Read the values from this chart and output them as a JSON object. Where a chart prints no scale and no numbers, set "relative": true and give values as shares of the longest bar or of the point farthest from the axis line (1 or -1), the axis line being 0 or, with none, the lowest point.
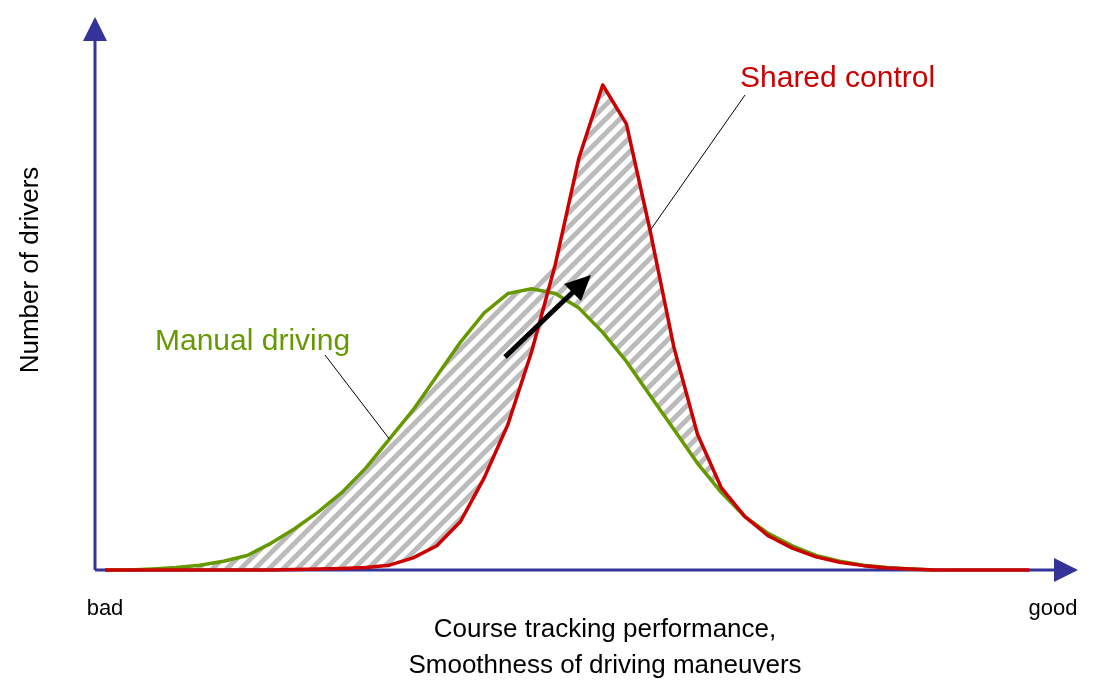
{
  "chart_data": {
    "type": "line",
    "relative": true,
    "xlabel": "Course tracking performance,\nSmoothness of driving maneuvers",
    "ylabel": "Number of drivers",
    "legend": false,
    "categories": [
      "bad",
      null,
      null,
      null,
      null,
      null,
      null,
      null,
      null,
      null,
      null,
      null,
      null,
      null,
      null,
      null,
      null,
      null,
      null,
      null,
      null,
      null,
      null,
      null,
      null,
      null,
      null,
      null,
      null,
      null,
      null,
      null,
      null,
      null,
      null,
      null,
      null,
      null,
      null,
      null,
      "good"
    ],
    "series": [
      {
        "name": "Manual driving",
        "color": "#669900",
        "values": [
          0,
          0,
          0.002,
          0.005,
          0.01,
          0.018,
          0.03,
          0.055,
          0.085,
          0.12,
          0.16,
          0.21,
          0.27,
          0.33,
          0.4,
          0.47,
          0.53,
          0.57,
          0.58,
          0.57,
          0.54,
          0.49,
          0.43,
          0.36,
          0.29,
          0.22,
          0.16,
          0.11,
          0.075,
          0.05,
          0.03,
          0.018,
          0.01,
          0.005,
          0.002,
          0,
          null,
          null,
          null,
          null,
          null
        ]
      },
      {
        "name": "Shared control",
        "color": "#cc0000",
        "values": [
          0,
          0,
          0,
          0,
          0,
          0,
          0,
          0,
          0.001,
          0.002,
          0.003,
          0.005,
          0.01,
          0.025,
          0.05,
          0.1,
          0.19,
          0.3,
          0.45,
          0.63,
          0.85,
          1,
          0.92,
          0.7,
          0.46,
          0.28,
          0.17,
          0.11,
          0.07,
          0.045,
          0.027,
          0.016,
          0.009,
          0.004,
          0.002,
          0,
          0,
          0,
          0,
          0,
          null
        ],
        "lower": [
          0,
          0,
          0,
          0,
          0,
          0,
          0,
          0,
          0.001,
          0.002,
          0.003,
          0.005,
          0.01,
          0.025,
          0.05,
          0.1,
          0.19,
          0.3,
          0.45,
          0.57,
          0.54,
          0.49,
          0.43,
          0.36,
          0.29,
          0.22,
          0.16,
          0.11,
          0.07,
          0.045,
          0.027,
          0.016,
          0.009,
          0.004,
          0.002,
          0,
          null,
          null,
          null,
          null,
          null
        ],
        "upper": [
          0,
          0,
          0.002,
          0.005,
          0.01,
          0.018,
          0.03,
          0.055,
          0.085,
          0.12,
          0.16,
          0.21,
          0.27,
          0.33,
          0.4,
          0.47,
          0.53,
          0.57,
          0.58,
          0.63,
          0.85,
          1,
          0.92,
          0.7,
          0.46,
          0.28,
          0.17,
          0.11,
          0.075,
          0.05,
          0.03,
          0.018,
          0.01,
          0.005,
          0.002,
          0,
          null,
          null,
          null,
          null,
          null
        ]
      }
    ]
  }
}
